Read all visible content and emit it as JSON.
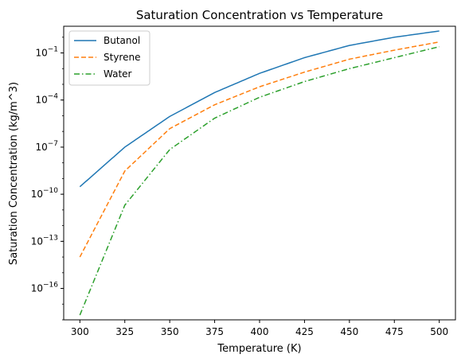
{
  "chart_data": {
    "type": "line",
    "title": "Saturation Concentration vs Temperature",
    "xlabel": "Temperature (K)",
    "ylabel": "Saturation Concentration (kg/m^3)",
    "xlim": [
      291,
      509
    ],
    "ylim": [
      1e-18,
      5
    ],
    "yscale": "log",
    "grid": false,
    "legend_position": "top-left",
    "x_ticks": [
      300,
      325,
      350,
      375,
      400,
      425,
      450,
      475,
      500
    ],
    "y_ticks": [
      {
        "value": 1e-16,
        "base": "10",
        "exp": "−16"
      },
      {
        "value": 1e-13,
        "base": "10",
        "exp": "−13"
      },
      {
        "value": 1e-10,
        "base": "10",
        "exp": "−10"
      },
      {
        "value": 1e-07,
        "base": "10",
        "exp": "−7"
      },
      {
        "value": 0.0001,
        "base": "10",
        "exp": "−4"
      },
      {
        "value": 0.1,
        "base": "10",
        "exp": "−1"
      }
    ],
    "x": [
      300,
      325,
      350,
      375,
      400,
      425,
      450,
      475,
      500
    ],
    "series": [
      {
        "name": "Butanol",
        "color": "#1f77b4",
        "dash": "solid",
        "values": [
          3e-10,
          1e-07,
          9e-06,
          0.0003,
          0.005,
          0.05,
          0.3,
          1.0,
          2.5
        ]
      },
      {
        "name": "Styrene",
        "color": "#ff7f0e",
        "dash": "dashed",
        "values": [
          1e-14,
          3e-09,
          1.5e-06,
          5e-05,
          0.0007,
          0.006,
          0.04,
          0.15,
          0.5
        ]
      },
      {
        "name": "Water",
        "color": "#2ca02c",
        "dash": "dashdot",
        "values": [
          2e-18,
          2e-11,
          7e-08,
          7e-06,
          0.00015,
          0.0015,
          0.01,
          0.05,
          0.25
        ]
      }
    ]
  }
}
